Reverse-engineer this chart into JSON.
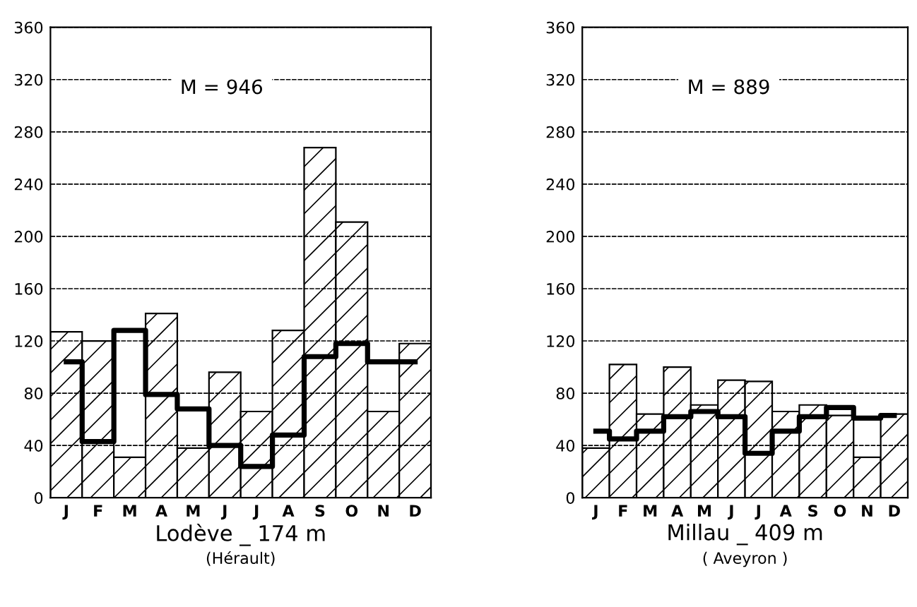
{
  "chart_data": [
    {
      "type": "bar",
      "xlabel": "Lodève _ 174 m",
      "subtitle": "(Hérault)",
      "annotations": [
        "M = 946"
      ],
      "categories": [
        "J",
        "F",
        "M",
        "A",
        "M",
        "J",
        "J",
        "A",
        "S",
        "O",
        "N",
        "D"
      ],
      "series": [
        {
          "color": "#000000",
          "values": [
            127,
            120,
            31,
            141,
            38,
            96,
            66,
            128,
            268,
            211,
            66,
            118
          ]
        },
        {
          "type": "step",
          "color": "#000000",
          "values": [
            104,
            43,
            128,
            79,
            68,
            40,
            24,
            48,
            108,
            118,
            104,
            104
          ]
        }
      ],
      "ylim": [
        0,
        360
      ],
      "yticks": [
        0,
        40,
        80,
        120,
        160,
        200,
        240,
        280,
        320,
        360
      ],
      "grid": "y",
      "legend": false
    },
    {
      "type": "bar",
      "xlabel": "Millau _ 409 m",
      "subtitle": "( Aveyron )",
      "annotations": [
        "M = 889"
      ],
      "categories": [
        "J",
        "F",
        "M",
        "A",
        "M",
        "J",
        "J",
        "A",
        "S",
        "O",
        "N",
        "D"
      ],
      "series": [
        {
          "color": "#000000",
          "values": [
            38,
            102,
            64,
            100,
            71,
            90,
            89,
            66,
            71,
            63,
            31,
            64
          ]
        },
        {
          "type": "step",
          "color": "#000000",
          "values": [
            51,
            45,
            51,
            62,
            66,
            62,
            34,
            51,
            62,
            69,
            61,
            63
          ]
        }
      ],
      "ylim": [
        0,
        360
      ],
      "yticks": [
        0,
        40,
        80,
        120,
        160,
        200,
        240,
        280,
        320,
        360
      ],
      "grid": "y",
      "legend": false
    }
  ]
}
